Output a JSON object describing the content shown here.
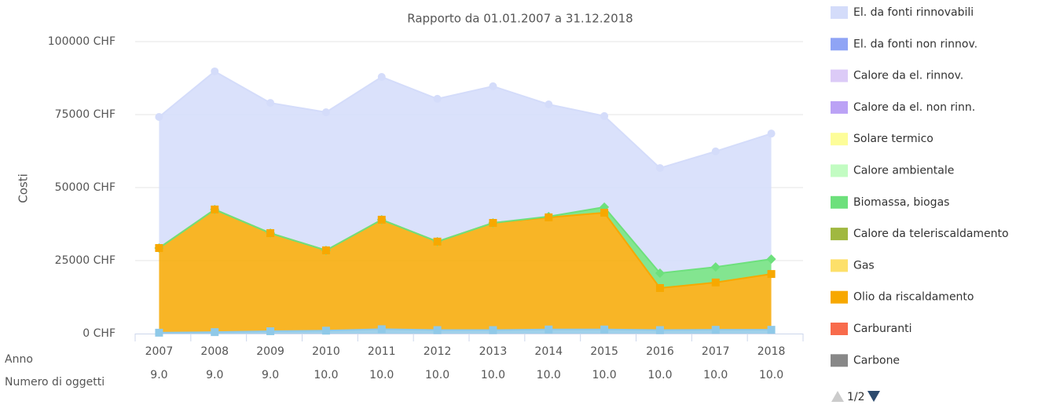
{
  "chart_data": {
    "type": "area",
    "title": "Rapporto da 01.01.2007 a 31.12.2018",
    "y_label": "Costi",
    "row_labels": [
      "Anno",
      "Numero di oggetti"
    ],
    "categories": [
      "2007",
      "2008",
      "2009",
      "2010",
      "2011",
      "2012",
      "2013",
      "2014",
      "2015",
      "2016",
      "2017",
      "2018"
    ],
    "object_counts": [
      "9.0",
      "9.0",
      "9.0",
      "10.0",
      "10.0",
      "10.0",
      "10.0",
      "10.0",
      "10.0",
      "10.0",
      "10.0",
      "10.0"
    ],
    "ylim": [
      0,
      100000
    ],
    "yticks": [
      {
        "value": 0,
        "label": "0 CHF"
      },
      {
        "value": 25000,
        "label": "25000 CHF"
      },
      {
        "value": 50000,
        "label": "50000 CHF"
      },
      {
        "value": 75000,
        "label": "75000 CHF"
      },
      {
        "value": 100000,
        "label": "100000 CHF"
      }
    ],
    "grid": true,
    "stacked": true,
    "series": [
      {
        "name": null,
        "color": "#8fc9e8",
        "marker": "square",
        "values": [
          300,
          500,
          800,
          1000,
          1500,
          1200,
          1200,
          1400,
          1400,
          1200,
          1300,
          1300
        ]
      },
      {
        "name": "Olio da riscaldamento",
        "color": "#f7a800",
        "marker": "square",
        "values": [
          29000,
          42000,
          33600,
          27500,
          37500,
          30300,
          36700,
          38400,
          40000,
          14400,
          16200,
          19100
        ]
      },
      {
        "name": "Biomassa, biogas",
        "color": "#6de07c",
        "marker": "diamond",
        "values": [
          0,
          0,
          0,
          0,
          0,
          0,
          0,
          300,
          1900,
          5100,
          5300,
          5100
        ]
      },
      {
        "name": "El. da fonti rinnovabili",
        "color": "#d4dcfa",
        "marker": "circle",
        "values": [
          44900,
          47300,
          44600,
          47300,
          48900,
          48900,
          46800,
          38400,
          31200,
          36000,
          39600,
          43000
        ]
      }
    ],
    "legend": [
      {
        "name": "El. da fonti rinnovabili",
        "color": "#d4dcfa"
      },
      {
        "name": "El. da fonti non rinnov.",
        "color": "#8fa4f5"
      },
      {
        "name": "Calore da el. rinnov.",
        "color": "#dccbf7"
      },
      {
        "name": "Calore da el. non rinn.",
        "color": "#bba2f5"
      },
      {
        "name": "Solare termico",
        "color": "#fdfd99"
      },
      {
        "name": "Calore ambientale",
        "color": "#c2fcc2"
      },
      {
        "name": "Biomassa, biogas",
        "color": "#6de07c"
      },
      {
        "name": "Calore da teleriscaldamento",
        "color": "#a0b840"
      },
      {
        "name": "Gas",
        "color": "#fde06a"
      },
      {
        "name": "Olio da riscaldamento",
        "color": "#f7a800"
      },
      {
        "name": "Carburanti",
        "color": "#f86b4c"
      },
      {
        "name": "Carbone",
        "color": "#888888"
      }
    ],
    "legend_page": "1/2",
    "legend_position": "right"
  }
}
